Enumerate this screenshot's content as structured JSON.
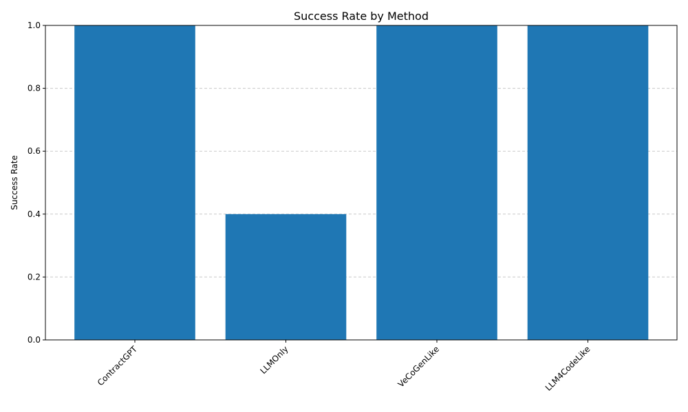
{
  "chart_data": {
    "type": "bar",
    "title": "Success Rate by Method",
    "xlabel": "",
    "ylabel": "Success Rate",
    "categories": [
      "ContractGPT",
      "LLMOnly",
      "VeCoGenLike",
      "LLM4CodeLike"
    ],
    "values": [
      1.0,
      0.4,
      1.0,
      1.0
    ],
    "ylim": [
      0,
      1.0
    ],
    "yticks": [
      "0.0",
      "0.2",
      "0.4",
      "0.6",
      "0.8",
      "1.0"
    ],
    "grid": "y-dashed",
    "bar_color": "#1f77b4",
    "grid_color": "#c8c8c8"
  }
}
